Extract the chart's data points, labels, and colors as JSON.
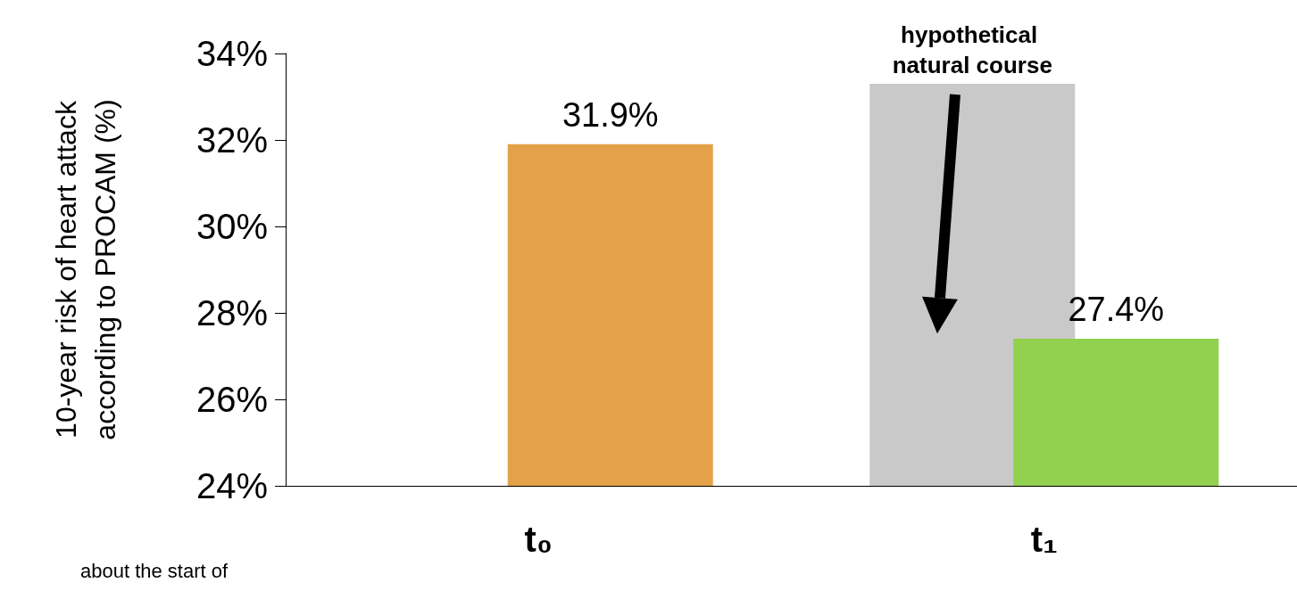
{
  "chart_data": {
    "type": "bar",
    "ylabel": "10-year risk of heart attack\naccording to PROCAM (%)",
    "categories": [
      "t₀",
      "t₁"
    ],
    "series": [
      {
        "name": "hypothetical natural course",
        "color": "#c9c9c9",
        "values": [
          null,
          33.3
        ]
      },
      {
        "colors": [
          "#e3a149",
          "#92d050"
        ],
        "values": [
          31.9,
          27.4
        ],
        "value_labels": [
          "31.9%",
          "27.4%"
        ]
      }
    ],
    "ylim": [
      24,
      34
    ],
    "yticks": [
      {
        "value": 24,
        "label": "24%"
      },
      {
        "value": 26,
        "label": "26%"
      },
      {
        "value": 28,
        "label": "28%"
      },
      {
        "value": 30,
        "label": "30%"
      },
      {
        "value": 32,
        "label": "32%"
      },
      {
        "value": 34,
        "label": "34%"
      }
    ],
    "grid": false,
    "legend": false,
    "annotations": [
      "about the start of"
    ]
  }
}
